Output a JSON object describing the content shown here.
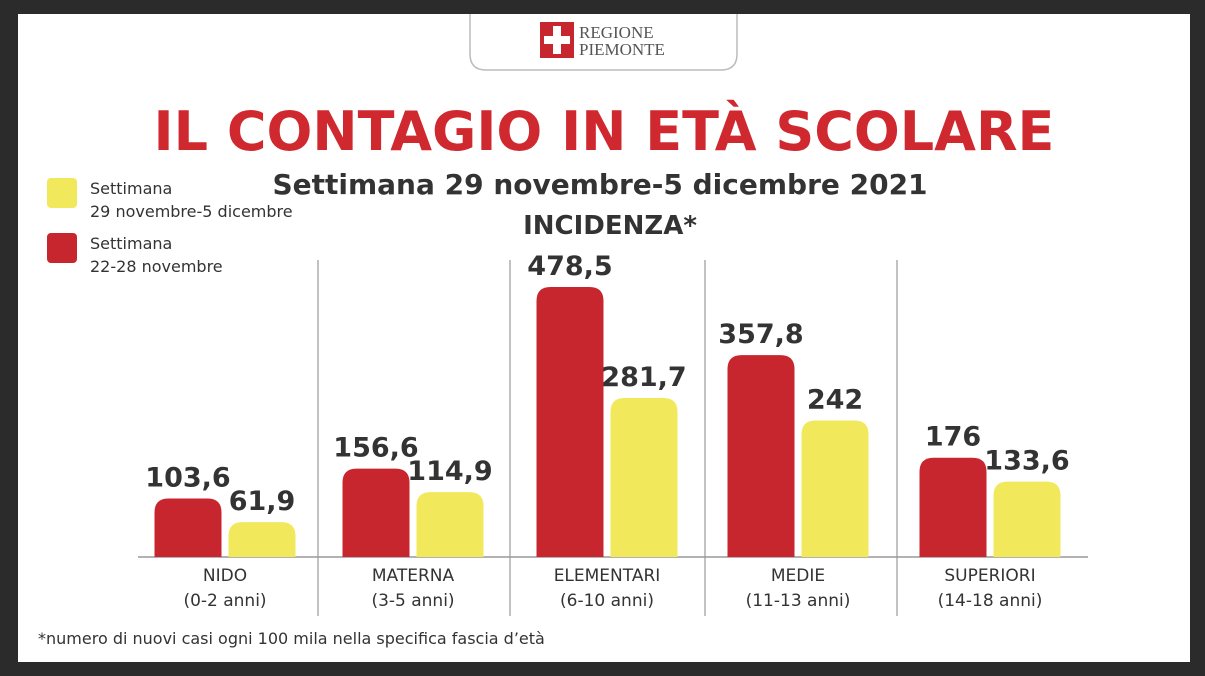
{
  "chart_data": {
    "type": "bar",
    "logo_text": [
      "REGIONE",
      "PIEMONTE"
    ],
    "title": "IL CONTAGIO IN ETÀ SCOLARE",
    "subtitle": "Settimana 29 novembre-5 dicembre 2021",
    "metric": "INCIDENZA*",
    "footnote": "*numero di nuovi casi ogni 100 mila nella specifica fascia d’età",
    "categories": [
      "NIDO\n(0-2 anni)",
      "MATERNA\n(3-5 anni)",
      "ELEMENTARI\n(6-10 anni)",
      "MEDIE\n(11-13 anni)",
      "SUPERIORI\n(14-18 anni)"
    ],
    "series": [
      {
        "name": "Settimana\n22-28 novembre",
        "color": "#c8262f",
        "values": [
          103.6,
          156.6,
          478.5,
          357.8,
          176
        ],
        "value_labels": [
          "103,6",
          "156,6",
          "478,5",
          "357,8",
          "176"
        ]
      },
      {
        "name": "Settimana\n29 novembre-5 dicembre",
        "color": "#f2e85c",
        "values": [
          61.9,
          114.9,
          281.7,
          242,
          133.6
        ],
        "value_labels": [
          "61,9",
          "114,9",
          "281,7",
          "242",
          "133,6"
        ]
      }
    ]
  }
}
